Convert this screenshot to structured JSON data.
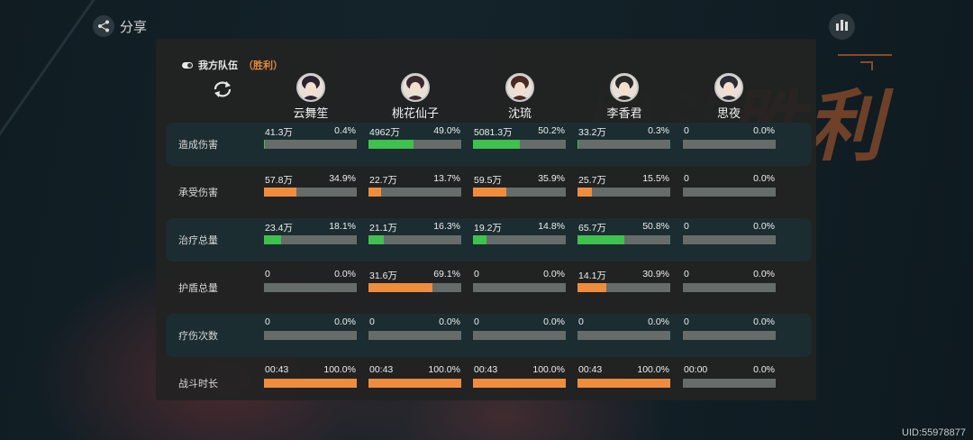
{
  "top_bar": {
    "share_label": "分享",
    "uid": "UID:55978877"
  },
  "background_text": "战斗胜利",
  "team": {
    "name": "我方队伍",
    "result": "（胜利）"
  },
  "characters": [
    {
      "name": "云舞笙"
    },
    {
      "name": "桃花仙子"
    },
    {
      "name": "沈琉"
    },
    {
      "name": "李香君"
    },
    {
      "name": "思夜"
    }
  ],
  "stats": [
    {
      "label": "造成伤害",
      "color": "#3ec14e",
      "cells": [
        {
          "value": "41.3万",
          "percent": "0.4%",
          "ratio": 0.004
        },
        {
          "value": "4962万",
          "percent": "49.0%",
          "ratio": 0.49
        },
        {
          "value": "5081.3万",
          "percent": "50.2%",
          "ratio": 0.502
        },
        {
          "value": "33.2万",
          "percent": "0.3%",
          "ratio": 0.003
        },
        {
          "value": "0",
          "percent": "0.0%",
          "ratio": 0
        }
      ]
    },
    {
      "label": "承受伤害",
      "color": "#ef8d3c",
      "cells": [
        {
          "value": "57.8万",
          "percent": "34.9%",
          "ratio": 0.349
        },
        {
          "value": "22.7万",
          "percent": "13.7%",
          "ratio": 0.137
        },
        {
          "value": "59.5万",
          "percent": "35.9%",
          "ratio": 0.359
        },
        {
          "value": "25.7万",
          "percent": "15.5%",
          "ratio": 0.155
        },
        {
          "value": "0",
          "percent": "0.0%",
          "ratio": 0
        }
      ]
    },
    {
      "label": "治疗总量",
      "color": "#3ec14e",
      "cells": [
        {
          "value": "23.4万",
          "percent": "18.1%",
          "ratio": 0.181
        },
        {
          "value": "21.1万",
          "percent": "16.3%",
          "ratio": 0.163
        },
        {
          "value": "19.2万",
          "percent": "14.8%",
          "ratio": 0.148
        },
        {
          "value": "65.7万",
          "percent": "50.8%",
          "ratio": 0.508
        },
        {
          "value": "0",
          "percent": "0.0%",
          "ratio": 0
        }
      ]
    },
    {
      "label": "护盾总量",
      "color": "#ef8d3c",
      "cells": [
        {
          "value": "0",
          "percent": "0.0%",
          "ratio": 0
        },
        {
          "value": "31.6万",
          "percent": "69.1%",
          "ratio": 0.691
        },
        {
          "value": "0",
          "percent": "0.0%",
          "ratio": 0
        },
        {
          "value": "14.1万",
          "percent": "30.9%",
          "ratio": 0.309
        },
        {
          "value": "0",
          "percent": "0.0%",
          "ratio": 0
        }
      ]
    },
    {
      "label": "疗伤次数",
      "color": "#3ec14e",
      "cells": [
        {
          "value": "0",
          "percent": "0.0%",
          "ratio": 0
        },
        {
          "value": "0",
          "percent": "0.0%",
          "ratio": 0
        },
        {
          "value": "0",
          "percent": "0.0%",
          "ratio": 0
        },
        {
          "value": "0",
          "percent": "0.0%",
          "ratio": 0
        },
        {
          "value": "0",
          "percent": "0.0%",
          "ratio": 0
        }
      ]
    },
    {
      "label": "战斗时长",
      "color": "#ef8d3c",
      "cells": [
        {
          "value": "00:43",
          "percent": "100.0%",
          "ratio": 1
        },
        {
          "value": "00:43",
          "percent": "100.0%",
          "ratio": 1
        },
        {
          "value": "00:43",
          "percent": "100.0%",
          "ratio": 1
        },
        {
          "value": "00:43",
          "percent": "100.0%",
          "ratio": 1
        },
        {
          "value": "00:00",
          "percent": "0.0%",
          "ratio": 0
        }
      ]
    }
  ]
}
